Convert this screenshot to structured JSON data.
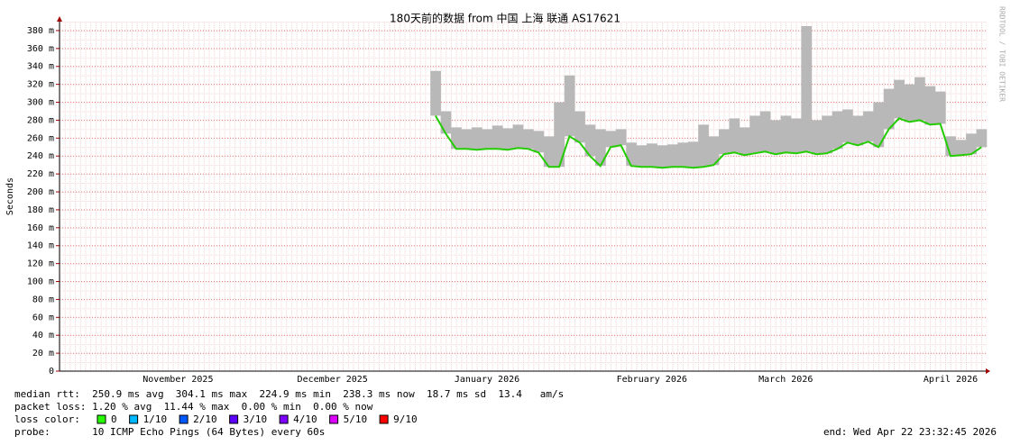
{
  "chart_data": {
    "type": "line",
    "title": "180天前的数据 from  中国 上海 联通 AS17621",
    "ylabel": "Seconds",
    "watermark": "RRDTOOL / TOBI OETIKER",
    "color": "#22cc00",
    "smoke_color": "#b8b8b8",
    "grid": true,
    "ylim": [
      0,
      0.39
    ],
    "yticks": [
      0,
      {
        "value": 0.02,
        "label": "20 m"
      },
      {
        "value": 0.04,
        "label": "40 m"
      },
      {
        "value": 0.06,
        "label": "60 m"
      },
      {
        "value": 0.08,
        "label": "80 m"
      },
      {
        "value": 0.1,
        "label": "100 m"
      },
      {
        "value": 0.12,
        "label": "120 m"
      },
      {
        "value": 0.14,
        "label": "140 m"
      },
      {
        "value": 0.16,
        "label": "160 m"
      },
      {
        "value": 0.18,
        "label": "180 m"
      },
      {
        "value": 0.2,
        "label": "200 m"
      },
      {
        "value": 0.22,
        "label": "220 m"
      },
      {
        "value": 0.24,
        "label": "240 m"
      },
      {
        "value": 0.26,
        "label": "260 m"
      },
      {
        "value": 0.28,
        "label": "280 m"
      },
      {
        "value": 0.3,
        "label": "300 m"
      },
      {
        "value": 0.32,
        "label": "320 m"
      },
      {
        "value": 0.34,
        "label": "340 m"
      },
      {
        "value": 0.36,
        "label": "360 m"
      },
      {
        "value": 0.38,
        "label": "380 m"
      }
    ],
    "categories": [
      null,
      null,
      null,
      null,
      null,
      null,
      null,
      null,
      null,
      null,
      null,
      "November 2025",
      null,
      null,
      null,
      null,
      null,
      null,
      null,
      null,
      null,
      null,
      null,
      null,
      null,
      null,
      "December 2025",
      null,
      null,
      null,
      null,
      null,
      null,
      null,
      null,
      null,
      null,
      null,
      null,
      null,
      null,
      "January 2026",
      null,
      null,
      null,
      null,
      null,
      null,
      null,
      null,
      null,
      null,
      null,
      null,
      null,
      null,
      null,
      "February 2026",
      null,
      null,
      null,
      null,
      null,
      null,
      null,
      null,
      null,
      null,
      null,
      null,
      "March 2026",
      null,
      null,
      null,
      null,
      null,
      null,
      null,
      null,
      null,
      null,
      null,
      null,
      null,
      null,
      null,
      "April 2026",
      null,
      null,
      null
    ],
    "values": [
      null,
      null,
      null,
      null,
      null,
      null,
      null,
      null,
      null,
      null,
      null,
      null,
      null,
      null,
      null,
      null,
      null,
      null,
      null,
      null,
      null,
      null,
      null,
      null,
      null,
      null,
      null,
      null,
      null,
      null,
      null,
      null,
      null,
      null,
      null,
      null,
      0.285,
      0.265,
      0.248,
      0.248,
      0.247,
      0.248,
      0.248,
      0.247,
      0.249,
      0.248,
      0.244,
      0.228,
      0.228,
      0.262,
      0.255,
      0.24,
      0.229,
      0.25,
      0.252,
      0.229,
      0.228,
      0.228,
      0.227,
      0.228,
      0.228,
      0.227,
      0.228,
      0.23,
      0.242,
      0.244,
      0.241,
      0.243,
      0.245,
      0.242,
      0.244,
      0.243,
      0.245,
      0.242,
      0.243,
      0.248,
      0.255,
      0.252,
      0.256,
      0.25,
      0.27,
      0.282,
      0.278,
      0.28,
      0.275,
      0.276,
      0.24,
      0.241,
      0.242,
      0.25
    ],
    "smoke_max": [
      null,
      null,
      null,
      null,
      null,
      null,
      null,
      null,
      null,
      null,
      null,
      null,
      null,
      null,
      null,
      null,
      null,
      null,
      null,
      null,
      null,
      null,
      null,
      null,
      null,
      null,
      null,
      null,
      null,
      null,
      null,
      null,
      null,
      null,
      null,
      null,
      0.335,
      0.29,
      0.272,
      0.27,
      0.272,
      0.27,
      0.274,
      0.271,
      0.275,
      0.27,
      0.268,
      0.262,
      0.3,
      0.33,
      0.29,
      0.275,
      0.27,
      0.268,
      0.27,
      0.255,
      0.252,
      0.254,
      0.252,
      0.253,
      0.255,
      0.256,
      0.275,
      0.262,
      0.27,
      0.282,
      0.272,
      0.285,
      0.29,
      0.28,
      0.285,
      0.282,
      0.385,
      0.28,
      0.285,
      0.29,
      0.292,
      0.285,
      0.29,
      0.3,
      0.315,
      0.325,
      0.32,
      0.328,
      0.318,
      0.312,
      0.262,
      0.258,
      0.265,
      0.27
    ]
  },
  "stats": {
    "median_rtt": "median rtt:  250.9 ms avg  304.1 ms max  224.9 ms min  238.3 ms now  18.7 ms sd  13.4   am/s",
    "packet_loss": "packet loss: 1.20 % avg  11.44 % max  0.00 % min  0.00 % now",
    "loss_color_label": "loss color:",
    "loss_colors": [
      {
        "label": "0",
        "color": "#26ff00"
      },
      {
        "label": "1/10",
        "color": "#00b8ff"
      },
      {
        "label": "2/10",
        "color": "#0059ff"
      },
      {
        "label": "3/10",
        "color": "#5e00ff"
      },
      {
        "label": "4/10",
        "color": "#7e00ff"
      },
      {
        "label": "5/10",
        "color": "#dd00ff"
      },
      {
        "label": "9/10",
        "color": "#ff0000"
      }
    ],
    "probe": "probe:       10 ICMP Echo Pings (64 Bytes) every 60s",
    "end": "end: Wed Apr 22 23:32:45 2026"
  }
}
